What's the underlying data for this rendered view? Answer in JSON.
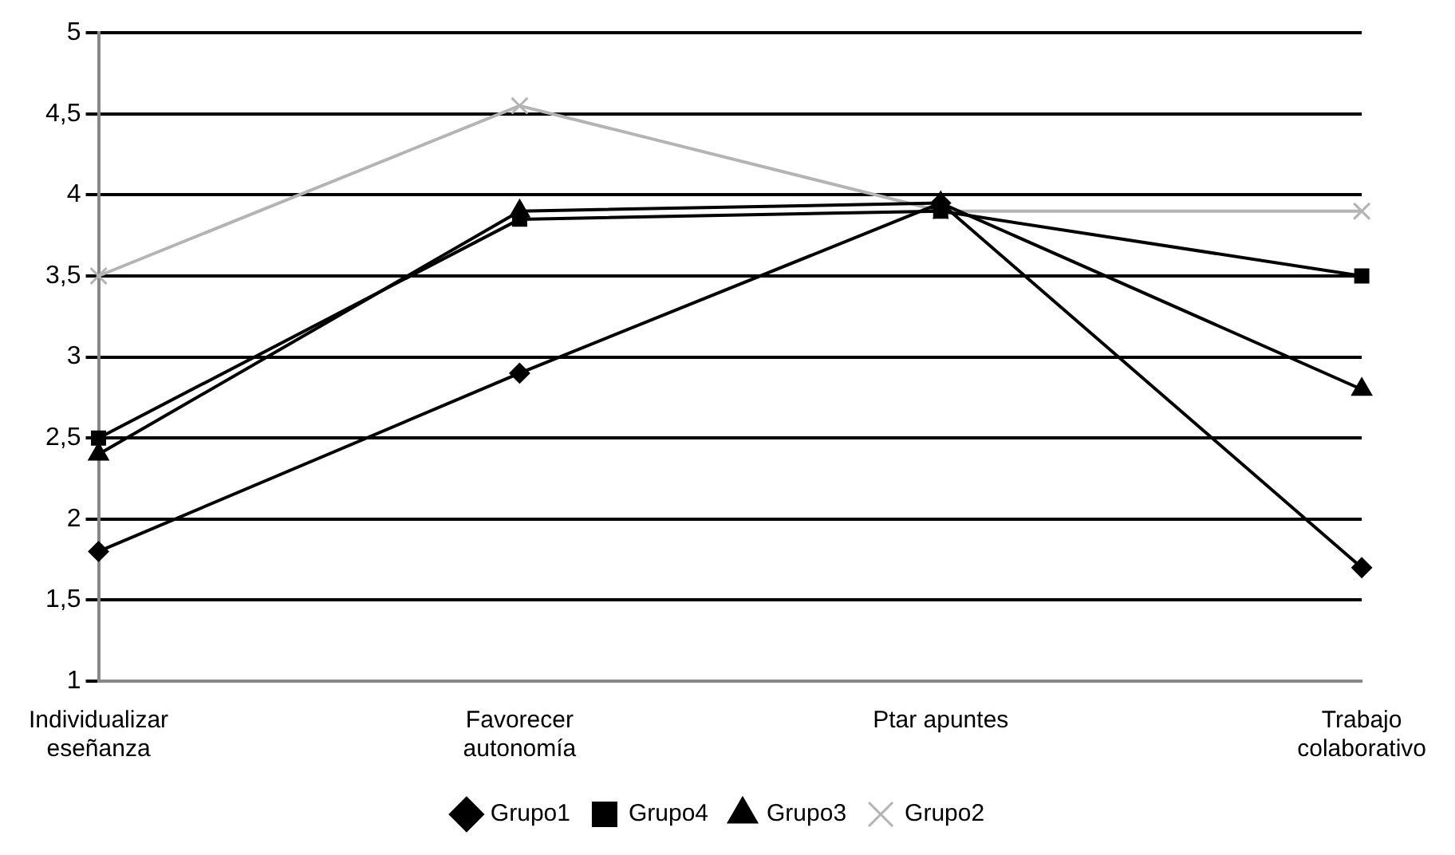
{
  "chart_data": {
    "type": "line",
    "categories": [
      "Individualizar eseñanza",
      "Favorecer autonomía",
      "Ptar apuntes",
      "Trabajo colaborativo"
    ],
    "series": [
      {
        "name": "Grupo1",
        "color": "#000000",
        "marker": "diamond",
        "values": [
          1.8,
          2.9,
          3.95,
          1.7
        ]
      },
      {
        "name": "Grupo4",
        "color": "#000000",
        "marker": "square",
        "values": [
          2.5,
          3.85,
          3.9,
          3.5
        ]
      },
      {
        "name": "Grupo3",
        "color": "#000000",
        "marker": "triangle",
        "values": [
          2.4,
          3.9,
          3.95,
          2.8
        ]
      },
      {
        "name": "Grupo2",
        "color": "#b4b4b4",
        "marker": "cross",
        "values": [
          3.5,
          4.55,
          3.9,
          3.9
        ]
      }
    ],
    "ylim": [
      1,
      5
    ],
    "yticks": [
      1,
      {
        "value": 1.5,
        "label": "1,5"
      },
      2,
      {
        "value": 2.5,
        "label": "2,5"
      },
      3,
      {
        "value": 3.5,
        "label": "3,5"
      },
      4,
      {
        "value": 4.5,
        "label": "4,5"
      },
      5
    ],
    "grid": "y",
    "legend": "bottom",
    "line_style": "solid"
  }
}
